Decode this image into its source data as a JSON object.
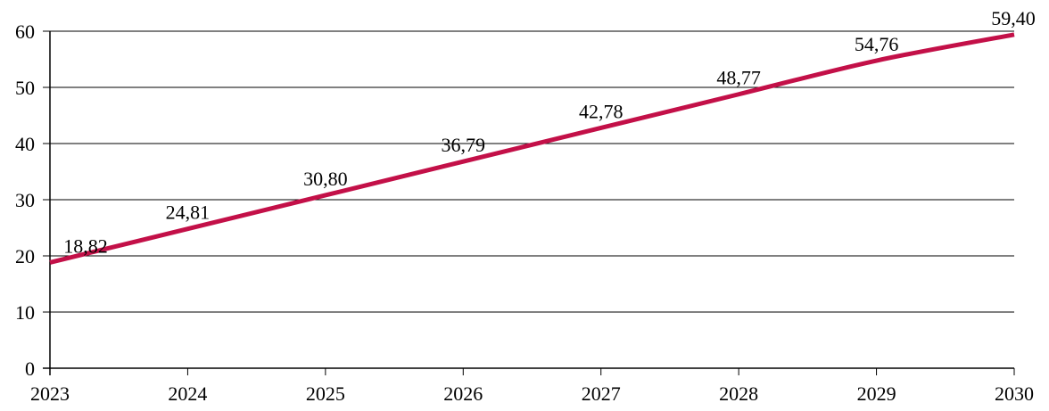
{
  "chart_data": {
    "type": "line",
    "title": "",
    "xlabel": "",
    "ylabel": "",
    "x": [
      2023,
      2024,
      2025,
      2026,
      2027,
      2028,
      2029,
      2030
    ],
    "x_tick_labels": [
      "2023",
      "2024",
      "2025",
      "2026",
      "2027",
      "2028",
      "2029",
      "2030"
    ],
    "series": [
      {
        "name": "",
        "values": [
          18.82,
          24.81,
          30.8,
          36.79,
          42.78,
          48.77,
          54.76,
          59.4
        ],
        "data_labels": [
          "18,82",
          "24,81",
          "30,80",
          "36,79",
          "42,78",
          "48,77",
          "54,76",
          "59,40"
        ]
      }
    ],
    "ylim": [
      0,
      60
    ],
    "y_step": 10,
    "y_tick_labels": [
      "0",
      "10",
      "20",
      "30",
      "40",
      "50",
      "60"
    ],
    "grid": "horizontal",
    "legend": "none",
    "smooth_line": true,
    "colors": {
      "line": "#C31048",
      "grid": "#000000",
      "axis": "#000000",
      "text": "#000000",
      "background": "#FFFFFF"
    }
  }
}
